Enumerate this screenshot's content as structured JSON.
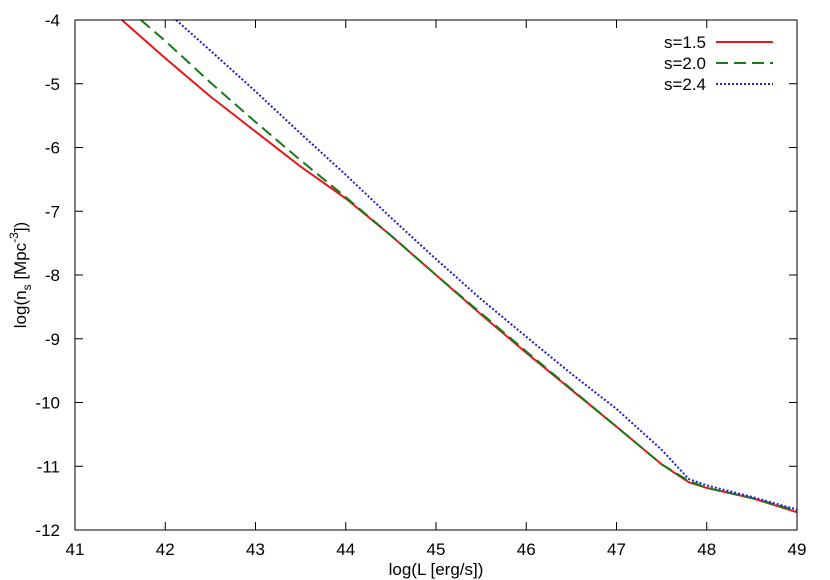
{
  "chart_data": {
    "type": "line",
    "title": "",
    "xlabel": "log(L [erg/s])",
    "ylabel": {
      "prefix": "log(n",
      "sub": "s",
      "middle": " [Mpc",
      "sup": "-3",
      "suffix": "])"
    },
    "xlim": [
      41,
      49
    ],
    "ylim": [
      -12,
      -4
    ],
    "x_ticks": [
      "41",
      "42",
      "43",
      "44",
      "45",
      "46",
      "47",
      "48",
      "49"
    ],
    "y_ticks": [
      "-4",
      "-5",
      "-6",
      "-7",
      "-8",
      "-9",
      "-10",
      "-11",
      "-12"
    ],
    "grid": false,
    "legend_position": "top-right",
    "series": [
      {
        "name": "s=1.5",
        "color": "#e41a1c",
        "style": "solid",
        "x": [
          41.52,
          42.0,
          42.5,
          43.0,
          43.5,
          44.0,
          44.5,
          45.0,
          45.5,
          46.0,
          46.5,
          47.0,
          47.5,
          47.8,
          48.0,
          48.5,
          49.0
        ],
        "y": [
          -4.0,
          -4.6,
          -5.2,
          -5.75,
          -6.3,
          -6.8,
          -7.38,
          -8.0,
          -8.62,
          -9.22,
          -9.8,
          -10.38,
          -10.97,
          -11.25,
          -11.34,
          -11.5,
          -11.72
        ]
      },
      {
        "name": "s=2.0",
        "color": "#1a7a1a",
        "style": "dashed",
        "x": [
          41.73,
          42.0,
          42.5,
          43.0,
          43.5,
          44.0,
          44.5,
          45.0,
          45.5,
          46.0,
          46.5,
          47.0,
          47.5,
          47.8,
          48.0,
          48.5,
          49.0
        ],
        "y": [
          -4.0,
          -4.33,
          -4.98,
          -5.6,
          -6.2,
          -6.78,
          -7.38,
          -8.0,
          -8.6,
          -9.2,
          -9.79,
          -10.38,
          -10.97,
          -11.23,
          -11.34,
          -11.5,
          -11.7
        ]
      },
      {
        "name": "s=2.4",
        "color": "#1f1fcc",
        "style": "dotted",
        "x": [
          42.12,
          42.5,
          43.0,
          43.5,
          44.0,
          44.5,
          45.0,
          45.5,
          46.0,
          46.5,
          47.0,
          47.5,
          47.8,
          48.0,
          48.5,
          49.0
        ],
        "y": [
          -4.0,
          -4.48,
          -5.12,
          -5.78,
          -6.43,
          -7.1,
          -7.75,
          -8.38,
          -8.97,
          -9.55,
          -10.1,
          -10.74,
          -11.2,
          -11.3,
          -11.48,
          -11.68
        ]
      }
    ]
  }
}
